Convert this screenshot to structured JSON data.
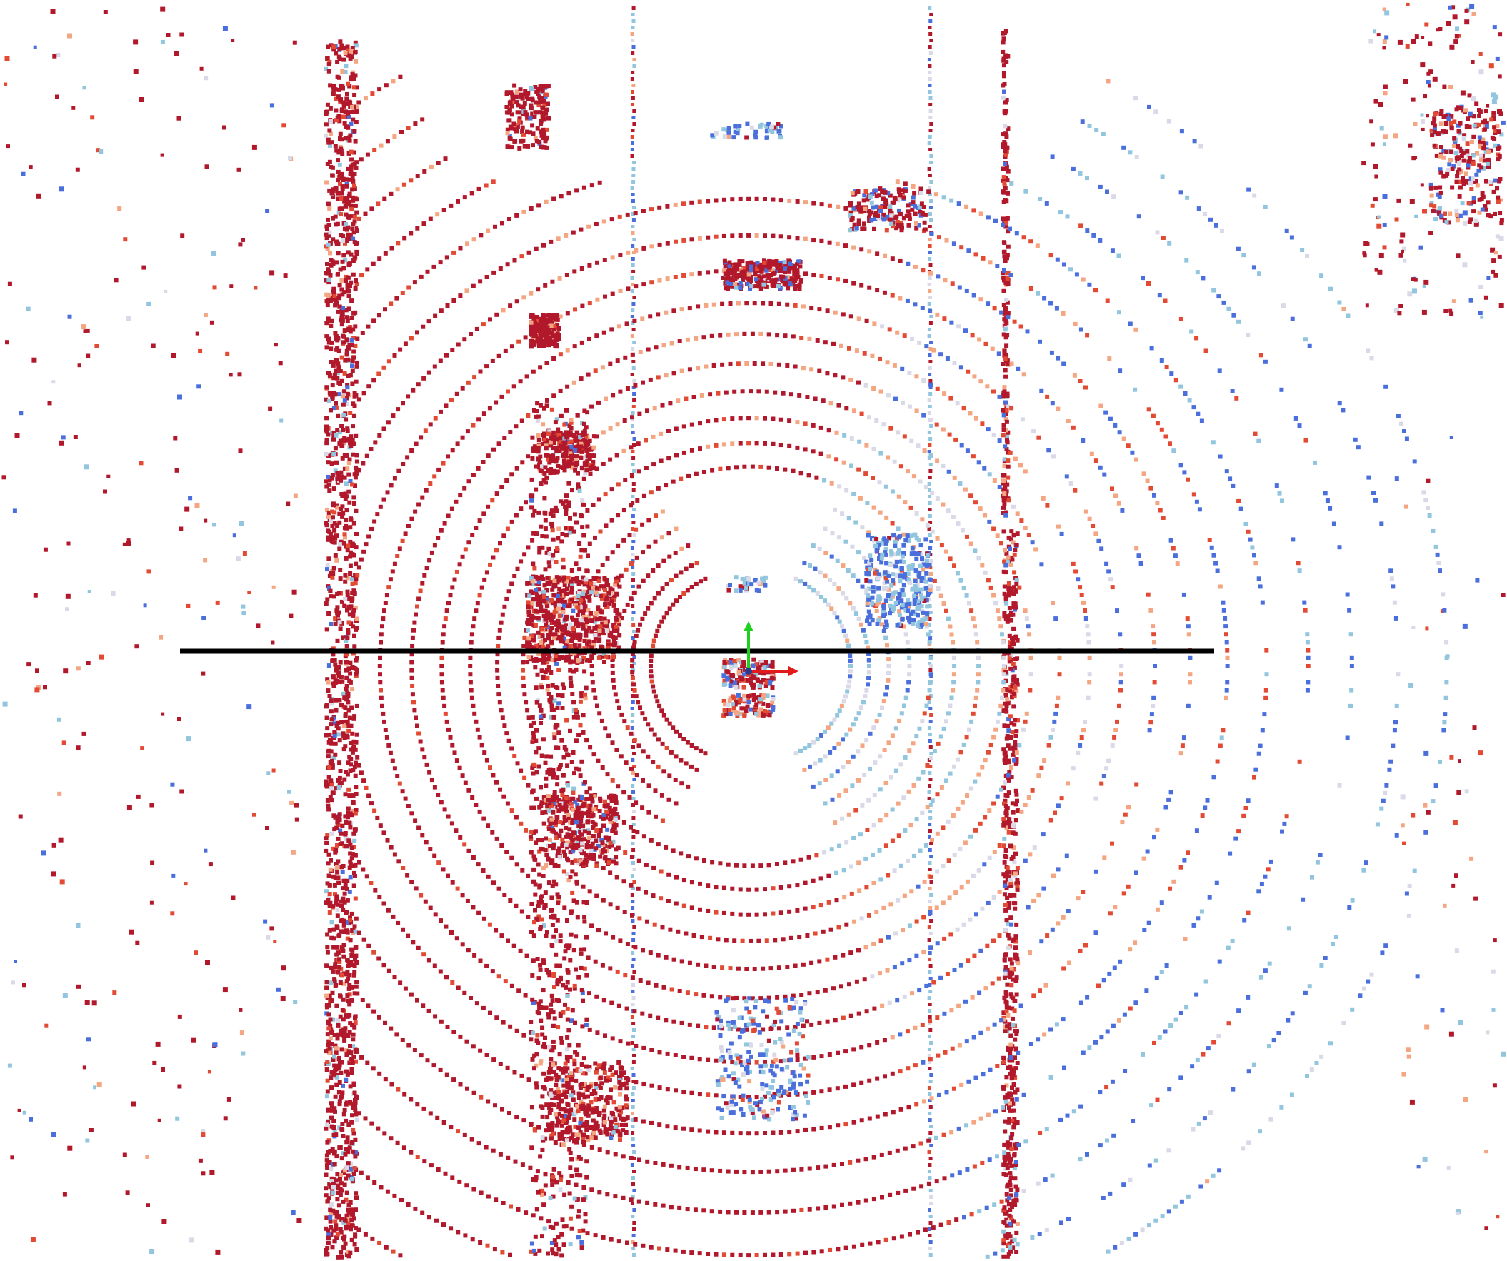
{
  "scene": {
    "background": "#ffffff",
    "palette": {
      "hot": "#b2182b",
      "warm": "#e34a33",
      "mid": "#f4a582",
      "neutral": "#d9d9e8",
      "cool": "#92c5de",
      "cold": "#4a6fdc",
      "coldest": "#3b4cc0"
    },
    "reference_line_color": "#000000",
    "axes": {
      "x_color": "#e31a1c",
      "y_color": "#1fd01f",
      "origin_color": "#2b3a8a"
    }
  }
}
